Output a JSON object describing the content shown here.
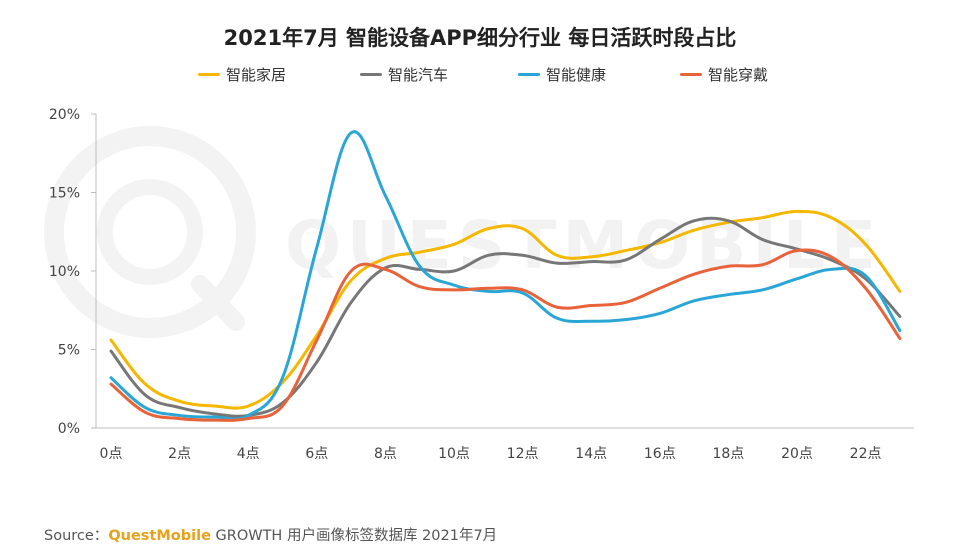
{
  "source": {
    "prefix": "Source：",
    "brand": "QuestMobile",
    "suffix": "GROWTH 用户画像标签数据库 2021年7月"
  },
  "watermark": {
    "text": "QUESTMOBILE",
    "color": "#f2f2f2"
  },
  "chart_data": {
    "type": "line",
    "title": "2021年7月 智能设备APP细分行业 每日活跃时段占比",
    "xlabel": "",
    "ylabel": "",
    "ylim": [
      0,
      20
    ],
    "grid": false,
    "legend_position": "top",
    "x": [
      0,
      1,
      2,
      3,
      4,
      5,
      6,
      7,
      8,
      9,
      10,
      11,
      12,
      13,
      14,
      15,
      16,
      17,
      18,
      19,
      20,
      21,
      22,
      23
    ],
    "x_tick_labels": [
      "0点",
      "2点",
      "4点",
      "6点",
      "8点",
      "10点",
      "12点",
      "14点",
      "16点",
      "18点",
      "20点",
      "22点"
    ],
    "y_tick_labels": [
      "0%",
      "5%",
      "10%",
      "15%",
      "20%"
    ],
    "y_ticks": [
      0,
      5,
      10,
      15,
      20
    ],
    "series": [
      {
        "name": "智能家居",
        "color": "#f5b700",
        "values": [
          5.6,
          2.8,
          1.7,
          1.4,
          1.4,
          2.9,
          5.9,
          9.4,
          10.8,
          11.2,
          11.7,
          12.7,
          12.7,
          11.0,
          10.9,
          11.3,
          11.8,
          12.6,
          13.1,
          13.4,
          13.8,
          13.4,
          11.7,
          8.7
        ]
      },
      {
        "name": "智能汽车",
        "color": "#777777",
        "values": [
          4.9,
          2.1,
          1.3,
          0.9,
          0.8,
          1.6,
          4.2,
          8.0,
          10.2,
          10.1,
          10.0,
          11.0,
          11.0,
          10.5,
          10.6,
          10.7,
          12.0,
          13.2,
          13.2,
          12.0,
          11.4,
          10.7,
          9.5,
          7.1
        ]
      },
      {
        "name": "智能健康",
        "color": "#2aa6d6",
        "values": [
          3.2,
          1.3,
          0.8,
          0.7,
          0.8,
          3.2,
          11.5,
          18.8,
          14.8,
          10.3,
          9.1,
          8.7,
          8.6,
          7.0,
          6.8,
          6.9,
          7.3,
          8.1,
          8.5,
          8.8,
          9.5,
          10.1,
          9.7,
          6.2
        ]
      },
      {
        "name": "智能穿戴",
        "color": "#e8633a",
        "values": [
          2.8,
          1.0,
          0.6,
          0.5,
          0.6,
          1.4,
          5.6,
          10.0,
          10.1,
          9.0,
          8.8,
          8.9,
          8.8,
          7.7,
          7.8,
          8.0,
          8.9,
          9.8,
          10.3,
          10.4,
          11.3,
          10.9,
          8.9,
          5.7
        ]
      }
    ]
  }
}
